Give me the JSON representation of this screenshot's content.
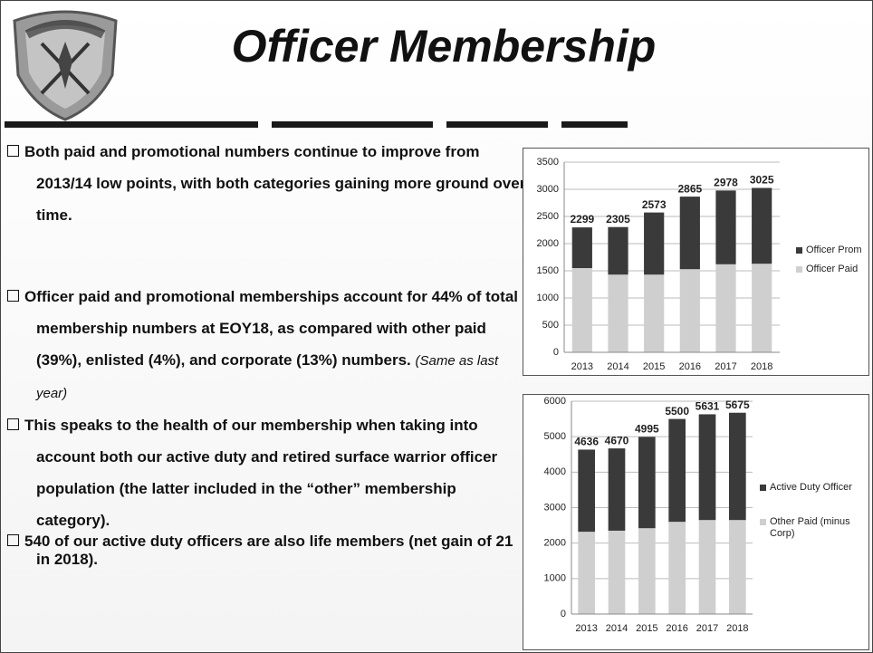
{
  "header": {
    "title": "Officer Membership"
  },
  "bullets": [
    {
      "text": "Both paid and promotional numbers continue to improve from 2013/14 low points, with both categories gaining more ground over time."
    },
    {
      "text": "Officer paid and promotional memberships account for 44% of total membership numbers at EOY18, as compared with other paid (39%), enlisted (4%), and corporate (13%) numbers.",
      "note": "(Same as last year)"
    },
    {
      "text": "This speaks to the health of our membership when taking into account both our active duty and retired surface warrior officer population (the latter included in the “other” membership category)."
    },
    {
      "text": "540 of our active duty officers are also life members (net gain of 21 in 2018)."
    }
  ],
  "chart_data": [
    {
      "type": "stacked_bar",
      "categories": [
        "2013",
        "2014",
        "2015",
        "2016",
        "2017",
        "2018"
      ],
      "series": [
        {
          "name": "Officer Paid",
          "color": "#cfcfcf",
          "values": [
            1550,
            1430,
            1430,
            1530,
            1620,
            1630
          ]
        },
        {
          "name": "Officer Prom",
          "color": "#3a3a3a",
          "values": [
            749,
            875,
            1143,
            1335,
            1358,
            1395
          ]
        }
      ],
      "totals": [
        2299,
        2305,
        2573,
        2865,
        2978,
        3025
      ],
      "ylim": [
        0,
        3500
      ],
      "yticks": [
        0,
        500,
        1000,
        1500,
        2000,
        2500,
        3000,
        3500
      ],
      "grid": true,
      "legend": "right"
    },
    {
      "type": "stacked_bar",
      "categories": [
        "2013",
        "2014",
        "2015",
        "2016",
        "2017",
        "2018"
      ],
      "series": [
        {
          "name": "Other Paid (minus Corp)",
          "color": "#cfcfcf",
          "values": [
            2320,
            2350,
            2420,
            2600,
            2650,
            2650
          ]
        },
        {
          "name": "Active Duty Officer",
          "color": "#3a3a3a",
          "values": [
            2316,
            2320,
            2575,
            2900,
            2981,
            3025
          ]
        }
      ],
      "totals": [
        4636,
        4670,
        4995,
        5500,
        5631,
        5675
      ],
      "ylim": [
        0,
        6000
      ],
      "yticks": [
        0,
        1000,
        2000,
        3000,
        4000,
        5000,
        6000
      ],
      "grid": true,
      "legend": "right"
    }
  ]
}
